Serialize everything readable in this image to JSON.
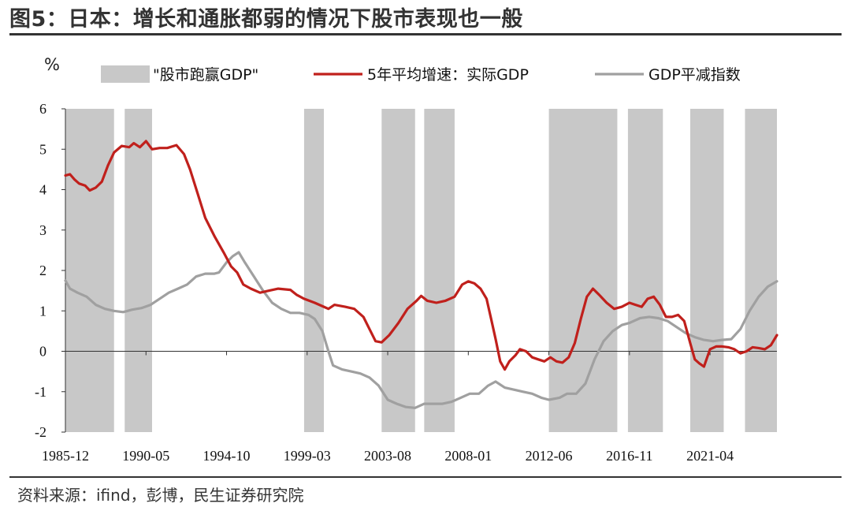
{
  "figure": {
    "title": "图5：日本：增长和通胀都弱的情况下股市表现也一般",
    "unit": "%",
    "source": "资料来源：ifind，彭博，民生证券研究院"
  },
  "chart_data": {
    "type": "line",
    "xlabel": "",
    "ylabel": "%",
    "x_range": [
      "1985-12",
      "2024-12"
    ],
    "ylim": [
      -2,
      6
    ],
    "y_ticks": [
      -2,
      -1,
      0,
      1,
      2,
      3,
      4,
      5,
      6
    ],
    "x_tick_labels": [
      "1985-12",
      "1990-05",
      "1994-10",
      "1999-03",
      "2003-08",
      "2008-01",
      "2012-06",
      "2016-11",
      "2021-04"
    ],
    "grid": false,
    "legend_position": "top",
    "legend": [
      "\"股市跑赢GDP\"",
      "5年平均增速：实际GDP",
      "GDP平减指数"
    ],
    "colors": {
      "shade": "#c8c8c8",
      "gdp_growth": "#c0201c",
      "deflator": "#a0a0a0"
    },
    "shaded_periods": [
      {
        "name": "\"股市跑赢GDP\"",
        "ranges": [
          [
            "1985-12",
            "1988-08"
          ],
          [
            "1989-03",
            "1990-09"
          ],
          [
            "1999-01",
            "2000-02"
          ],
          [
            "2003-04",
            "2005-02"
          ],
          [
            "2005-08",
            "2007-04"
          ],
          [
            "2012-06",
            "2016-03"
          ],
          [
            "2016-10",
            "2018-09"
          ],
          [
            "2020-03",
            "2022-01"
          ],
          [
            "2023-03",
            "2024-12"
          ]
        ]
      }
    ],
    "series": [
      {
        "name": "5年平均增速：实际GDP",
        "points": [
          [
            "1985-12",
            4.35
          ],
          [
            "1986-03",
            4.38
          ],
          [
            "1986-06",
            4.25
          ],
          [
            "1986-09",
            4.15
          ],
          [
            "1987-01",
            4.1
          ],
          [
            "1987-04",
            3.98
          ],
          [
            "1987-08",
            4.05
          ],
          [
            "1987-12",
            4.2
          ],
          [
            "1988-04",
            4.6
          ],
          [
            "1988-08",
            4.92
          ],
          [
            "1989-01",
            5.08
          ],
          [
            "1989-06",
            5.05
          ],
          [
            "1989-09",
            5.15
          ],
          [
            "1990-01",
            5.05
          ],
          [
            "1990-05",
            5.2
          ],
          [
            "1990-09",
            5.0
          ],
          [
            "1991-02",
            5.03
          ],
          [
            "1991-07",
            5.03
          ],
          [
            "1992-01",
            5.1
          ],
          [
            "1992-06",
            4.88
          ],
          [
            "1992-10",
            4.5
          ],
          [
            "1993-03",
            3.9
          ],
          [
            "1993-08",
            3.3
          ],
          [
            "1994-02",
            2.85
          ],
          [
            "1994-08",
            2.45
          ],
          [
            "1995-01",
            2.1
          ],
          [
            "1995-05",
            1.95
          ],
          [
            "1995-09",
            1.65
          ],
          [
            "1996-02",
            1.55
          ],
          [
            "1996-08",
            1.45
          ],
          [
            "1997-02",
            1.5
          ],
          [
            "1997-08",
            1.55
          ],
          [
            "1998-04",
            1.52
          ],
          [
            "1998-08",
            1.4
          ],
          [
            "1999-01",
            1.3
          ],
          [
            "1999-08",
            1.2
          ],
          [
            "2000-02",
            1.1
          ],
          [
            "2000-05",
            1.05
          ],
          [
            "2000-09",
            1.15
          ],
          [
            "2001-04",
            1.1
          ],
          [
            "2001-10",
            1.05
          ],
          [
            "2002-04",
            0.85
          ],
          [
            "2002-08",
            0.55
          ],
          [
            "2002-12",
            0.25
          ],
          [
            "2003-04",
            0.22
          ],
          [
            "2003-09",
            0.4
          ],
          [
            "2004-03",
            0.7
          ],
          [
            "2004-09",
            1.05
          ],
          [
            "2005-03",
            1.25
          ],
          [
            "2005-06",
            1.37
          ],
          [
            "2005-10",
            1.25
          ],
          [
            "2006-04",
            1.2
          ],
          [
            "2006-10",
            1.25
          ],
          [
            "2007-04",
            1.35
          ],
          [
            "2007-09",
            1.65
          ],
          [
            "2008-01",
            1.73
          ],
          [
            "2008-05",
            1.68
          ],
          [
            "2008-09",
            1.55
          ],
          [
            "2009-01",
            1.3
          ],
          [
            "2009-04",
            0.8
          ],
          [
            "2009-07",
            0.3
          ],
          [
            "2009-10",
            -0.25
          ],
          [
            "2010-01",
            -0.45
          ],
          [
            "2010-04",
            -0.25
          ],
          [
            "2010-08",
            -0.1
          ],
          [
            "2010-11",
            0.05
          ],
          [
            "2011-03",
            0.0
          ],
          [
            "2011-07",
            -0.15
          ],
          [
            "2011-11",
            -0.2
          ],
          [
            "2012-03",
            -0.25
          ],
          [
            "2012-07",
            -0.15
          ],
          [
            "2012-11",
            -0.25
          ],
          [
            "2013-03",
            -0.28
          ],
          [
            "2013-07",
            -0.15
          ],
          [
            "2013-11",
            0.2
          ],
          [
            "2014-03",
            0.8
          ],
          [
            "2014-07",
            1.35
          ],
          [
            "2014-11",
            1.55
          ],
          [
            "2015-03",
            1.4
          ],
          [
            "2015-08",
            1.2
          ],
          [
            "2016-01",
            1.05
          ],
          [
            "2016-06",
            1.1
          ],
          [
            "2016-11",
            1.2
          ],
          [
            "2017-03",
            1.15
          ],
          [
            "2017-07",
            1.1
          ],
          [
            "2017-11",
            1.3
          ],
          [
            "2018-03",
            1.35
          ],
          [
            "2018-07",
            1.15
          ],
          [
            "2018-11",
            0.85
          ],
          [
            "2019-03",
            0.85
          ],
          [
            "2019-07",
            0.9
          ],
          [
            "2019-11",
            0.75
          ],
          [
            "2020-03",
            0.2
          ],
          [
            "2020-06",
            -0.2
          ],
          [
            "2020-09",
            -0.3
          ],
          [
            "2020-12",
            -0.38
          ],
          [
            "2021-04",
            0.05
          ],
          [
            "2021-08",
            0.12
          ],
          [
            "2021-12",
            0.12
          ],
          [
            "2022-04",
            0.1
          ],
          [
            "2022-08",
            0.05
          ],
          [
            "2022-12",
            -0.05
          ],
          [
            "2023-04",
            0.0
          ],
          [
            "2023-08",
            0.1
          ],
          [
            "2023-12",
            0.08
          ],
          [
            "2024-04",
            0.05
          ],
          [
            "2024-08",
            0.15
          ],
          [
            "2024-12",
            0.4
          ]
        ]
      },
      {
        "name": "GDP平减指数",
        "points": [
          [
            "1985-12",
            1.75
          ],
          [
            "1986-03",
            1.55
          ],
          [
            "1986-08",
            1.45
          ],
          [
            "1987-02",
            1.35
          ],
          [
            "1987-08",
            1.15
          ],
          [
            "1988-02",
            1.05
          ],
          [
            "1988-08",
            1.0
          ],
          [
            "1989-02",
            0.97
          ],
          [
            "1989-08",
            1.03
          ],
          [
            "1990-02",
            1.07
          ],
          [
            "1990-08",
            1.15
          ],
          [
            "1991-02",
            1.3
          ],
          [
            "1991-08",
            1.45
          ],
          [
            "1992-02",
            1.55
          ],
          [
            "1992-08",
            1.65
          ],
          [
            "1993-02",
            1.85
          ],
          [
            "1993-08",
            1.92
          ],
          [
            "1994-02",
            1.92
          ],
          [
            "1994-05",
            1.95
          ],
          [
            "1994-10",
            2.2
          ],
          [
            "1995-02",
            2.35
          ],
          [
            "1995-06",
            2.45
          ],
          [
            "1995-10",
            2.2
          ],
          [
            "1996-04",
            1.85
          ],
          [
            "1996-10",
            1.5
          ],
          [
            "1997-04",
            1.2
          ],
          [
            "1997-10",
            1.05
          ],
          [
            "1998-04",
            0.95
          ],
          [
            "1998-10",
            0.95
          ],
          [
            "1999-04",
            0.9
          ],
          [
            "1999-08",
            0.8
          ],
          [
            "2000-01",
            0.5
          ],
          [
            "2000-05",
            0.0
          ],
          [
            "2000-08",
            -0.35
          ],
          [
            "2001-02",
            -0.45
          ],
          [
            "2001-08",
            -0.5
          ],
          [
            "2002-02",
            -0.55
          ],
          [
            "2002-08",
            -0.65
          ],
          [
            "2003-02",
            -0.85
          ],
          [
            "2003-08",
            -1.2
          ],
          [
            "2004-02",
            -1.3
          ],
          [
            "2004-08",
            -1.38
          ],
          [
            "2005-02",
            -1.4
          ],
          [
            "2005-08",
            -1.3
          ],
          [
            "2006-02",
            -1.3
          ],
          [
            "2006-08",
            -1.3
          ],
          [
            "2007-02",
            -1.25
          ],
          [
            "2007-08",
            -1.15
          ],
          [
            "2008-02",
            -1.05
          ],
          [
            "2008-08",
            -1.05
          ],
          [
            "2009-02",
            -0.85
          ],
          [
            "2009-07",
            -0.75
          ],
          [
            "2010-01",
            -0.9
          ],
          [
            "2010-07",
            -0.95
          ],
          [
            "2011-01",
            -1.0
          ],
          [
            "2011-07",
            -1.05
          ],
          [
            "2012-01",
            -1.15
          ],
          [
            "2012-06",
            -1.2
          ],
          [
            "2013-01",
            -1.15
          ],
          [
            "2013-06",
            -1.05
          ],
          [
            "2013-12",
            -1.05
          ],
          [
            "2014-06",
            -0.8
          ],
          [
            "2014-12",
            -0.2
          ],
          [
            "2015-06",
            0.25
          ],
          [
            "2015-12",
            0.5
          ],
          [
            "2016-06",
            0.65
          ],
          [
            "2016-11",
            0.7
          ],
          [
            "2017-06",
            0.82
          ],
          [
            "2017-12",
            0.85
          ],
          [
            "2018-06",
            0.82
          ],
          [
            "2018-12",
            0.75
          ],
          [
            "2019-06",
            0.6
          ],
          [
            "2019-12",
            0.45
          ],
          [
            "2020-06",
            0.35
          ],
          [
            "2020-12",
            0.28
          ],
          [
            "2021-06",
            0.25
          ],
          [
            "2021-12",
            0.28
          ],
          [
            "2022-06",
            0.3
          ],
          [
            "2022-12",
            0.55
          ],
          [
            "2023-06",
            1.0
          ],
          [
            "2023-12",
            1.35
          ],
          [
            "2024-06",
            1.6
          ],
          [
            "2024-12",
            1.73
          ]
        ]
      }
    ]
  }
}
